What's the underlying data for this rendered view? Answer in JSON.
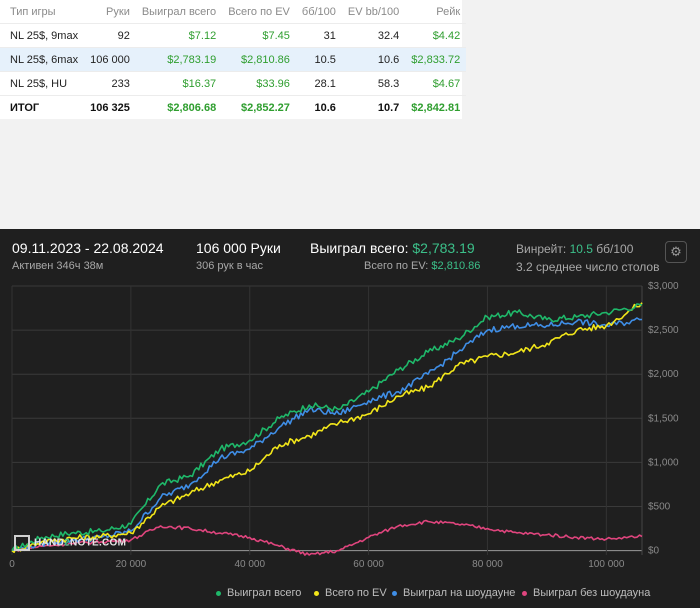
{
  "table": {
    "headers": [
      "Тип игры",
      "Руки",
      "Выиграл всего",
      "Всего по EV",
      "бб/100",
      "EV bb/100",
      "Рейк"
    ],
    "rows": [
      {
        "game": "NL 25$, 9max",
        "hands": "92",
        "won": "$7.12",
        "ev": "$7.45",
        "bb100": "31",
        "evbb100": "32.4",
        "rake": "$4.42"
      },
      {
        "game": "NL 25$, 6max",
        "hands": "106 000",
        "won": "$2,783.19",
        "ev": "$2,810.86",
        "bb100": "10.5",
        "evbb100": "10.6",
        "rake": "$2,833.72"
      },
      {
        "game": "NL 25$, HU",
        "hands": "233",
        "won": "$16.37",
        "ev": "$33.96",
        "bb100": "28.1",
        "evbb100": "58.3",
        "rake": "$4.67"
      }
    ],
    "total": {
      "game": "ИТОГ",
      "hands": "106 325",
      "won": "$2,806.68",
      "ev": "$2,852.27",
      "bb100": "10.6",
      "evbb100": "10.7",
      "rake": "$2,842.81"
    }
  },
  "header": {
    "dates": "09.11.2023 - 22.08.2024",
    "active": "Активен 346ч 38м",
    "hands": "106 000 Руки",
    "rate": "306 рук в час",
    "won_label": "Выиграл всего:",
    "won_value": "$2,783.19",
    "ev_label": "Всего по EV:",
    "ev_value": "$2,810.86",
    "winrate_label": "Винрейт:",
    "winrate_value": "10.5",
    "winrate_unit": "бб/100",
    "tables": "3.2 среднее число столов"
  },
  "logo": {
    "part1": "HAND",
    "part2": "2",
    "part3": "NOTE.COM"
  },
  "colors": {
    "total": "#1fb86a",
    "ev": "#f2e61a",
    "showdown": "#3f8ee6",
    "non_showdown": "#e0457e",
    "accent": "#3cc08a"
  },
  "chart_data": {
    "type": "line",
    "xlim": [
      0,
      106000
    ],
    "ylim": [
      -50,
      3000
    ],
    "x_ticks": [
      0,
      20000,
      40000,
      60000,
      80000,
      100000
    ],
    "x_tick_labels": [
      "0",
      "20 000",
      "40 000",
      "60 000",
      "80 000",
      "100 000"
    ],
    "y_ticks": [
      0,
      500,
      1000,
      1500,
      2000,
      2500,
      3000
    ],
    "y_tick_labels": [
      "$0",
      "$500",
      "$1,000",
      "$1,500",
      "$2,000",
      "$2,500",
      "$3,000"
    ],
    "legend": [
      "Выиграл всего",
      "Всего по EV",
      "Выиграл на шоудауне",
      "Выиграл без шоудауна"
    ],
    "legend_position": "bottom-right",
    "x": [
      0,
      5000,
      10000,
      15000,
      20000,
      25000,
      30000,
      35000,
      40000,
      45000,
      50000,
      55000,
      60000,
      65000,
      70000,
      75000,
      80000,
      85000,
      90000,
      95000,
      100000,
      106000
    ],
    "series": [
      {
        "name": "Выиграл всего",
        "color": "#1fb86a",
        "values": [
          0,
          150,
          200,
          220,
          300,
          750,
          850,
          1150,
          1250,
          1500,
          1650,
          1600,
          1800,
          2050,
          2250,
          2400,
          2650,
          2700,
          2620,
          2650,
          2700,
          2783
        ]
      },
      {
        "name": "Всего по EV",
        "color": "#f2e61a",
        "values": [
          0,
          100,
          140,
          160,
          200,
          500,
          650,
          800,
          900,
          1200,
          1300,
          1450,
          1550,
          1750,
          1850,
          2100,
          2200,
          2250,
          2350,
          2500,
          2550,
          2811
        ]
      },
      {
        "name": "Выиграл на шоудауне",
        "color": "#3f8ee6",
        "values": [
          0,
          80,
          120,
          150,
          220,
          600,
          750,
          1050,
          1150,
          1400,
          1600,
          1550,
          1700,
          1800,
          2000,
          2250,
          2500,
          2550,
          2550,
          2600,
          2550,
          2620
        ]
      },
      {
        "name": "Выиграл без шоудауна",
        "color": "#e0457e",
        "values": [
          0,
          50,
          80,
          100,
          120,
          280,
          250,
          200,
          150,
          50,
          -50,
          0,
          150,
          280,
          330,
          300,
          250,
          200,
          180,
          150,
          130,
          160
        ]
      }
    ]
  }
}
